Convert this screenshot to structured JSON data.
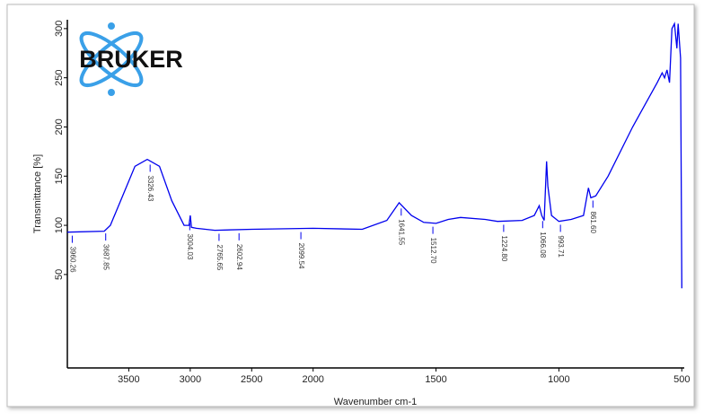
{
  "chart_data": {
    "type": "line",
    "logo_text": "BRUKER",
    "xlabel": "Wavenumber cm-1",
    "ylabel": "Transmittance [%]",
    "color": "#0000ee",
    "xlim": [
      4000,
      490
    ],
    "x_scale_breaks": [
      {
        "at": 2000,
        "factor": 2
      }
    ],
    "xticks": [
      3500,
      3000,
      2500,
      2000,
      1500,
      1000,
      500
    ],
    "ylim": [
      -45,
      309
    ],
    "yticks": [
      50,
      100,
      150,
      200,
      250,
      300
    ],
    "x": [
      4000,
      3700,
      3650,
      3550,
      3450,
      3350,
      3250,
      3150,
      3050,
      3010,
      3000,
      2990,
      2950,
      2800,
      2500,
      2000,
      1800,
      1700,
      1650,
      1600,
      1550,
      1500,
      1450,
      1400,
      1300,
      1250,
      1150,
      1100,
      1080,
      1070,
      1060,
      1050,
      1045,
      1030,
      1000,
      950,
      900,
      880,
      870,
      850,
      800,
      700,
      600,
      580,
      570,
      560,
      550,
      540,
      530,
      520,
      515,
      505,
      500
    ],
    "values": [
      93,
      94,
      100,
      130,
      160,
      167,
      160,
      125,
      100,
      100,
      110,
      98,
      97,
      95,
      96,
      97,
      96,
      105,
      123,
      110,
      103,
      102,
      106,
      108,
      106,
      104,
      105,
      110,
      120,
      110,
      105,
      165,
      140,
      110,
      104,
      106,
      110,
      138,
      128,
      130,
      150,
      200,
      245,
      255,
      250,
      258,
      245,
      300,
      305,
      280,
      305,
      270,
      36
    ],
    "peak_labels": [
      {
        "value": 3960.26,
        "label": "3960.26"
      },
      {
        "value": 3687.85,
        "label": "3687.85"
      },
      {
        "value": 3326.43,
        "label": "3326.43"
      },
      {
        "value": 3004.03,
        "label": "3004.03"
      },
      {
        "value": 2765.65,
        "label": "2765.65"
      },
      {
        "value": 2602.94,
        "label": "2602.94"
      },
      {
        "value": 2099.54,
        "label": "2099.54"
      },
      {
        "value": 1641.55,
        "label": "1641.55"
      },
      {
        "value": 1512.7,
        "label": "1512.70"
      },
      {
        "value": 1224.8,
        "label": "1224.80"
      },
      {
        "value": 1066.08,
        "label": "1066.08"
      },
      {
        "value": 993.71,
        "label": "993.71"
      },
      {
        "value": 861.6,
        "label": "861.60"
      }
    ]
  }
}
